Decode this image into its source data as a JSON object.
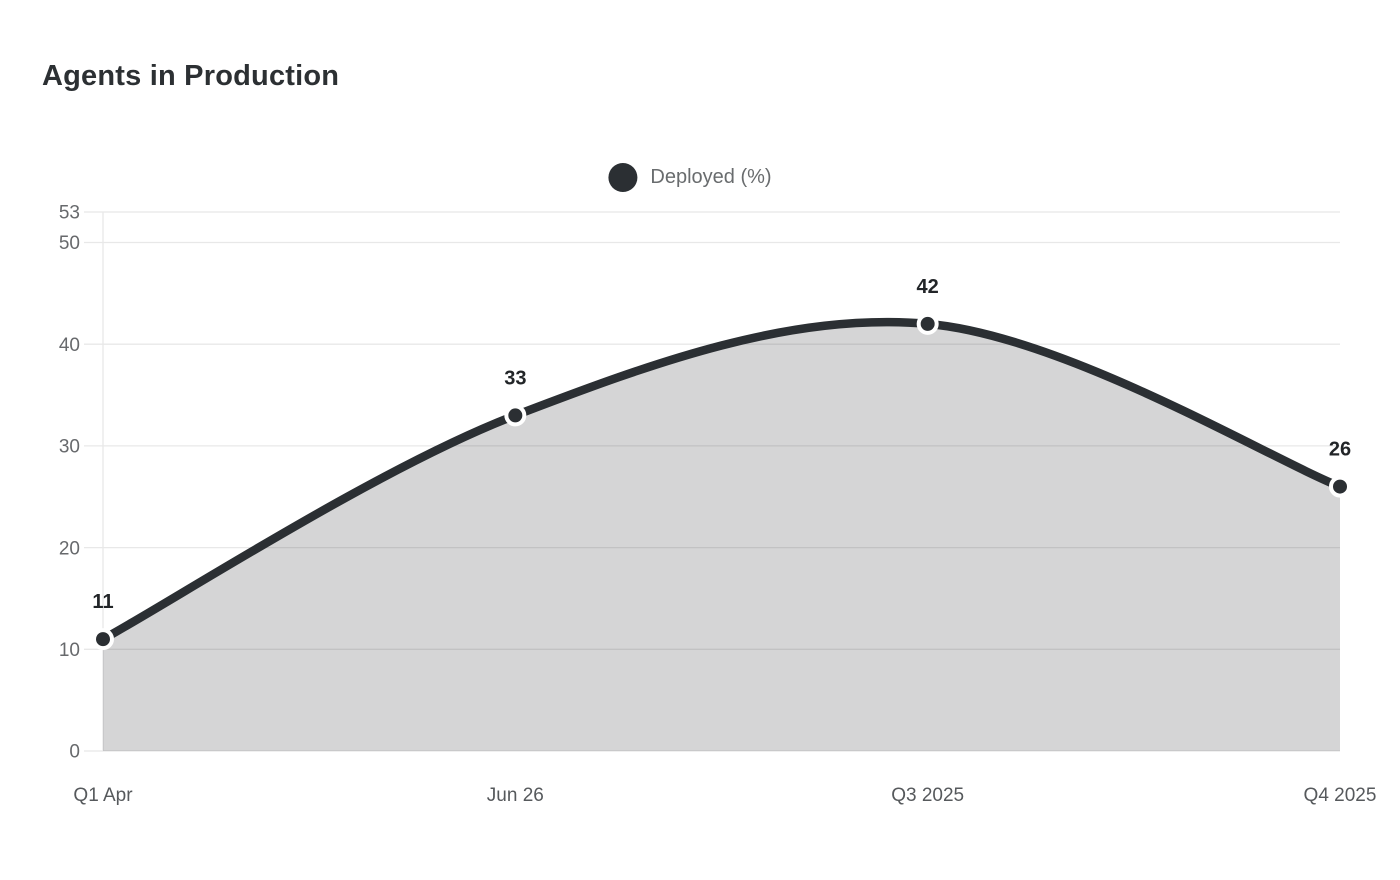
{
  "title": "Agents in Production",
  "legend": {
    "label": "Deployed (%)"
  },
  "colors": {
    "background": "#ffffff",
    "line": "#2b2f33",
    "point_fill": "#2b2f33",
    "point_ring": "#ffffff",
    "area_fill": "rgba(43,47,51,0.20)",
    "grid": "#e8e8e8",
    "y_tick_label": "#67696c",
    "x_tick_label": "#56595c",
    "value_label": "#222528",
    "legend_text": "#696c6e",
    "title_text": "#2c3033"
  },
  "chart_data": {
    "type": "area",
    "title": "Agents in Production",
    "categories": [
      "Q1 Apr",
      "Jun 26",
      "Q3 2025",
      "Q4 2025"
    ],
    "series": [
      {
        "name": "Deployed (%)",
        "values": [
          11,
          33,
          42,
          26
        ]
      }
    ],
    "point_labels": [
      "11",
      "33",
      "42",
      "26"
    ],
    "yticks": [
      0,
      10,
      20,
      30,
      40,
      50,
      53
    ],
    "ylim": [
      0,
      53
    ],
    "xlabel": "",
    "ylabel": "",
    "grid": "horizontal",
    "legend_position": "top-center",
    "smooth": true,
    "markers": true
  }
}
